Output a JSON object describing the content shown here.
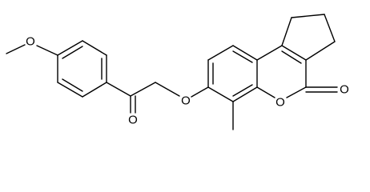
{
  "nodes": [
    {
      "label": "O"
    },
    {
      "label": "O"
    },
    {
      "label": "O"
    },
    {
      "label": "O"
    },
    {
      "label": "O"
    }
  ]
}
